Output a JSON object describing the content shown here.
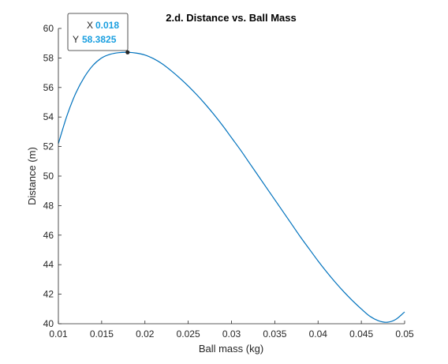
{
  "chart_data": {
    "type": "line",
    "title": "2.d. Distance vs. Ball Mass",
    "xlabel": "Ball mass (kg)",
    "ylabel": "Distance (m)",
    "xlim": [
      0.01,
      0.05
    ],
    "ylim": [
      40,
      60
    ],
    "xticks": [
      "0.01",
      "0.015",
      "0.02",
      "0.025",
      "0.03",
      "0.035",
      "0.04",
      "0.045",
      "0.05"
    ],
    "yticks": [
      "40",
      "42",
      "44",
      "46",
      "48",
      "50",
      "52",
      "54",
      "56",
      "58",
      "60"
    ],
    "grid": false,
    "series": [
      {
        "color": "#0072BD",
        "x": [
          0.01,
          0.011,
          0.012,
          0.013,
          0.014,
          0.015,
          0.016,
          0.017,
          0.018,
          0.019,
          0.02,
          0.021,
          0.022,
          0.023,
          0.024,
          0.025,
          0.026,
          0.027,
          0.028,
          0.029,
          0.03,
          0.031,
          0.032,
          0.033,
          0.034,
          0.035,
          0.036,
          0.037,
          0.038,
          0.039,
          0.04,
          0.041,
          0.042,
          0.043,
          0.044,
          0.045,
          0.046,
          0.047,
          0.048,
          0.049,
          0.05
        ],
        "y": [
          52.2,
          54.1,
          55.6,
          56.7,
          57.5,
          58.0,
          58.25,
          58.36,
          58.3825,
          58.33,
          58.2,
          57.95,
          57.6,
          57.15,
          56.65,
          56.1,
          55.5,
          54.85,
          54.15,
          53.4,
          52.6,
          51.8,
          50.95,
          50.1,
          49.25,
          48.4,
          47.55,
          46.7,
          45.85,
          45.05,
          44.25,
          43.5,
          42.8,
          42.15,
          41.55,
          41.0,
          40.5,
          40.2,
          40.1,
          40.3,
          40.8
        ]
      }
    ],
    "datatip": {
      "x_label": "X",
      "x_value": "0.018",
      "y_label": "Y",
      "y_value": "58.3825",
      "x": 0.018,
      "y": 58.3825
    }
  }
}
